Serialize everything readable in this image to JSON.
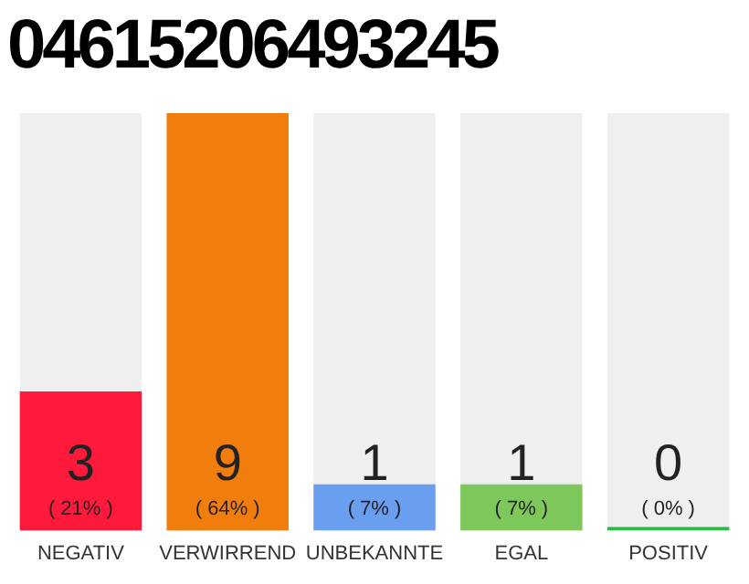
{
  "chart_data": {
    "type": "bar",
    "title": "04615206493245",
    "categories": [
      "NEGATIV",
      "VERWIRREND",
      "UNBEKANNTE",
      "EGAL",
      "POSITIV"
    ],
    "values": [
      3,
      9,
      1,
      1,
      0
    ],
    "colors": [
      "#ff1a3c",
      "#f07d0c",
      "#6a9fef",
      "#7ec75a",
      "#2eb84a"
    ],
    "value_labels": [
      "3\n( 21% )",
      "9\n( 64% )",
      "1\n( 7% )",
      "1\n( 7% )",
      "0\n( 0% )"
    ],
    "tick_labels": "x",
    "grid": false,
    "legend": false
  }
}
